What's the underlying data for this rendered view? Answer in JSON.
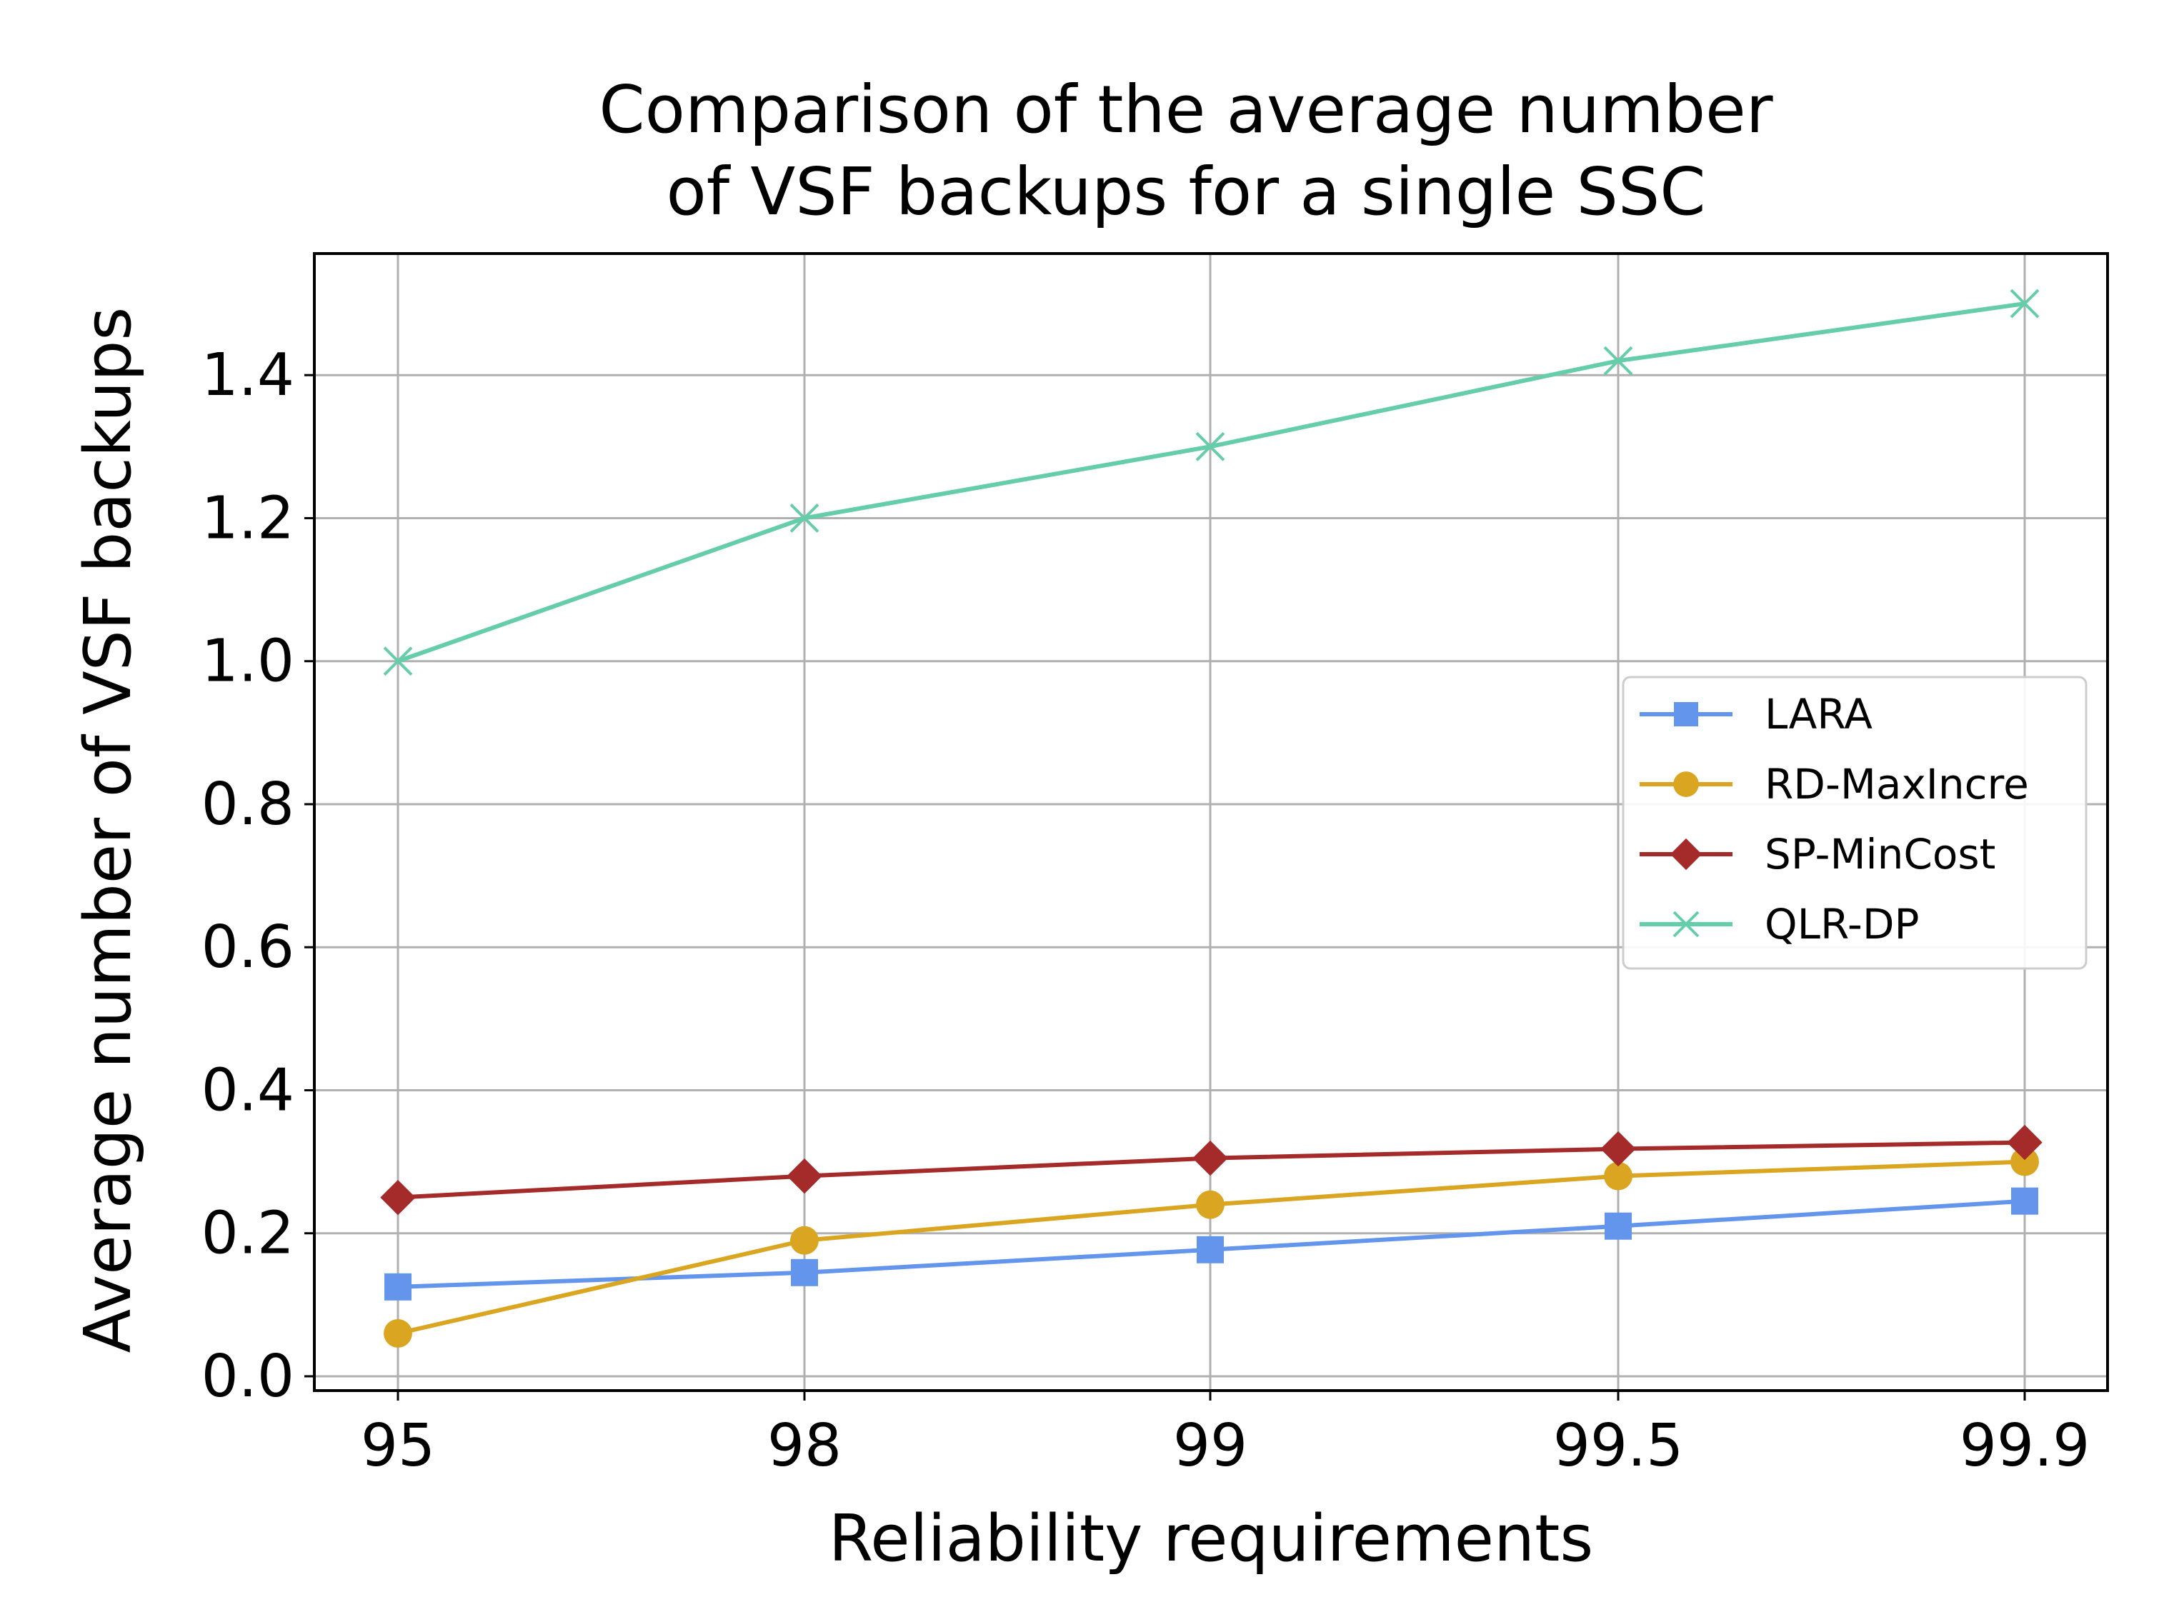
{
  "chart_data": {
    "type": "line",
    "title": [
      "Comparison of the average number",
      "of VSF backups for a single SSC"
    ],
    "xlabel": "Reliability requirements",
    "ylabel": "Average number of VSF backups",
    "categories": [
      "95",
      "98",
      "99",
      "99.5",
      "99.9"
    ],
    "ylim": [
      -0.02,
      1.57
    ],
    "yticks": [
      "0.0",
      "0.2",
      "0.4",
      "0.6",
      "0.8",
      "1.0",
      "1.2",
      "1.4"
    ],
    "ytick_values": [
      0.0,
      0.2,
      0.4,
      0.6,
      0.8,
      1.0,
      1.2,
      1.4
    ],
    "grid": true,
    "legend_position": "center-right",
    "series": [
      {
        "name": "LARA",
        "color": "#6495ED",
        "marker": "square",
        "values": [
          0.125,
          0.145,
          0.177,
          0.21,
          0.245
        ]
      },
      {
        "name": "RD-MaxIncre",
        "color": "#DAA520",
        "marker": "circle",
        "values": [
          0.06,
          0.19,
          0.24,
          0.28,
          0.3
        ]
      },
      {
        "name": "SP-MinCost",
        "color": "#A52A2A",
        "marker": "diamond",
        "values": [
          0.25,
          0.28,
          0.305,
          0.318,
          0.327
        ]
      },
      {
        "name": "QLR-DP",
        "color": "#66CDAA",
        "marker": "x",
        "values": [
          1.0,
          1.2,
          1.3,
          1.42,
          1.5
        ]
      }
    ]
  }
}
